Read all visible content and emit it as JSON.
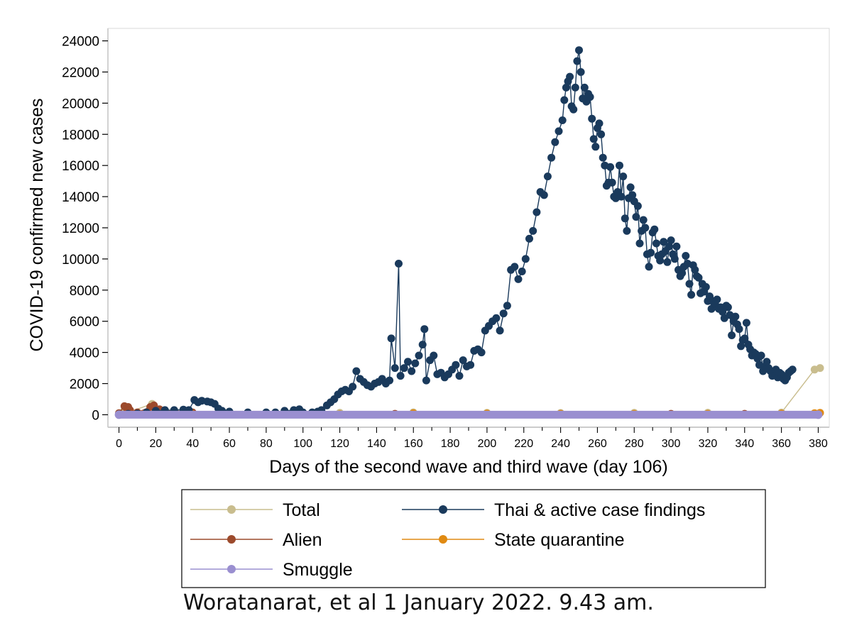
{
  "chart_data": {
    "type": "line",
    "title": "",
    "xlabel": "Days of the second wave and third wave (day 106)",
    "ylabel": "COVID-19 confirmed new cases",
    "xlim": [
      -6,
      386
    ],
    "ylim": [
      -800,
      24800
    ],
    "xticks": [
      0,
      20,
      40,
      60,
      80,
      100,
      120,
      140,
      160,
      180,
      200,
      220,
      240,
      260,
      280,
      300,
      320,
      340,
      360,
      380
    ],
    "yticks": [
      0,
      2000,
      4000,
      6000,
      8000,
      10000,
      12000,
      14000,
      16000,
      18000,
      20000,
      22000,
      24000
    ],
    "grid": false,
    "legend_position": "bottom",
    "series": [
      {
        "name": "Total",
        "color": "#c9bd8e",
        "style": "line+markers",
        "points": [
          [
            0,
            60
          ],
          [
            3,
            300
          ],
          [
            5,
            150
          ],
          [
            18,
            700
          ],
          [
            20,
            350
          ],
          [
            40,
            120
          ],
          [
            80,
            60
          ],
          [
            120,
            120
          ],
          [
            160,
            150
          ],
          [
            200,
            120
          ],
          [
            240,
            110
          ],
          [
            280,
            120
          ],
          [
            320,
            130
          ],
          [
            360,
            140
          ],
          [
            378,
            2900
          ],
          [
            381,
            3000
          ]
        ]
      },
      {
        "name": "Thai & active case findings",
        "color": "#1a3a5c",
        "style": "line+markers",
        "points": [
          [
            0,
            30
          ],
          [
            5,
            60
          ],
          [
            10,
            80
          ],
          [
            15,
            150
          ],
          [
            20,
            250
          ],
          [
            25,
            300
          ],
          [
            30,
            300
          ],
          [
            35,
            330
          ],
          [
            38,
            300
          ],
          [
            41,
            950
          ],
          [
            43,
            800
          ],
          [
            45,
            900
          ],
          [
            48,
            850
          ],
          [
            50,
            800
          ],
          [
            52,
            700
          ],
          [
            54,
            400
          ],
          [
            56,
            250
          ],
          [
            60,
            200
          ],
          [
            70,
            150
          ],
          [
            80,
            150
          ],
          [
            85,
            150
          ],
          [
            90,
            250
          ],
          [
            95,
            300
          ],
          [
            98,
            350
          ],
          [
            100,
            150
          ],
          [
            105,
            150
          ],
          [
            108,
            200
          ],
          [
            110,
            300
          ],
          [
            113,
            600
          ],
          [
            115,
            800
          ],
          [
            117,
            1000
          ],
          [
            119,
            1300
          ],
          [
            121,
            1500
          ],
          [
            123,
            1600
          ],
          [
            125,
            1500
          ],
          [
            127,
            1800
          ],
          [
            129,
            2800
          ],
          [
            131,
            2300
          ],
          [
            133,
            2100
          ],
          [
            135,
            1900
          ],
          [
            137,
            1800
          ],
          [
            139,
            2000
          ],
          [
            141,
            2100
          ],
          [
            143,
            2300
          ],
          [
            145,
            2000
          ],
          [
            147,
            2200
          ],
          [
            148,
            4900
          ],
          [
            150,
            3000
          ],
          [
            152,
            9700
          ],
          [
            153,
            2500
          ],
          [
            155,
            3000
          ],
          [
            157,
            3400
          ],
          [
            159,
            2800
          ],
          [
            161,
            3300
          ],
          [
            163,
            3800
          ],
          [
            165,
            4500
          ],
          [
            166,
            5500
          ],
          [
            167,
            2200
          ],
          [
            169,
            3500
          ],
          [
            171,
            3800
          ],
          [
            173,
            2600
          ],
          [
            175,
            2700
          ],
          [
            177,
            2400
          ],
          [
            179,
            2600
          ],
          [
            181,
            2900
          ],
          [
            183,
            3200
          ],
          [
            185,
            2500
          ],
          [
            187,
            3500
          ],
          [
            189,
            3100
          ],
          [
            191,
            3200
          ],
          [
            193,
            4100
          ],
          [
            195,
            4200
          ],
          [
            197,
            4000
          ],
          [
            199,
            5400
          ],
          [
            201,
            5700
          ],
          [
            203,
            6000
          ],
          [
            205,
            6200
          ],
          [
            207,
            5400
          ],
          [
            209,
            6500
          ],
          [
            211,
            7000
          ],
          [
            213,
            9300
          ],
          [
            215,
            9500
          ],
          [
            217,
            8700
          ],
          [
            219,
            9200
          ],
          [
            221,
            10000
          ],
          [
            223,
            11300
          ],
          [
            225,
            11800
          ],
          [
            227,
            13000
          ],
          [
            229,
            14300
          ],
          [
            231,
            14100
          ],
          [
            233,
            15300
          ],
          [
            235,
            16500
          ],
          [
            237,
            17500
          ],
          [
            239,
            18200
          ],
          [
            241,
            18900
          ],
          [
            242,
            20200
          ],
          [
            243,
            21000
          ],
          [
            244,
            21400
          ],
          [
            245,
            21700
          ],
          [
            246,
            19800
          ],
          [
            247,
            19600
          ],
          [
            248,
            21000
          ],
          [
            249,
            22700
          ],
          [
            250,
            23400
          ],
          [
            251,
            22000
          ],
          [
            252,
            20300
          ],
          [
            253,
            21000
          ],
          [
            254,
            20100
          ],
          [
            255,
            20600
          ],
          [
            256,
            20400
          ],
          [
            257,
            19000
          ],
          [
            258,
            17700
          ],
          [
            259,
            17200
          ],
          [
            260,
            18400
          ],
          [
            261,
            18700
          ],
          [
            262,
            18000
          ],
          [
            263,
            16500
          ],
          [
            264,
            16000
          ],
          [
            265,
            14700
          ],
          [
            266,
            14900
          ],
          [
            267,
            15900
          ],
          [
            268,
            14900
          ],
          [
            269,
            14000
          ],
          [
            270,
            13900
          ],
          [
            271,
            14300
          ],
          [
            272,
            16000
          ],
          [
            273,
            14000
          ],
          [
            274,
            15300
          ],
          [
            275,
            12600
          ],
          [
            276,
            11800
          ],
          [
            277,
            13900
          ],
          [
            278,
            14600
          ],
          [
            279,
            14100
          ],
          [
            280,
            13700
          ],
          [
            281,
            12700
          ],
          [
            282,
            13400
          ],
          [
            283,
            11000
          ],
          [
            284,
            11800
          ],
          [
            285,
            12500
          ],
          [
            286,
            12000
          ],
          [
            287,
            10300
          ],
          [
            288,
            9500
          ],
          [
            289,
            10400
          ],
          [
            290,
            11700
          ],
          [
            291,
            11900
          ],
          [
            292,
            11000
          ],
          [
            293,
            10200
          ],
          [
            294,
            9900
          ],
          [
            295,
            10300
          ],
          [
            296,
            11100
          ],
          [
            297,
            10500
          ],
          [
            298,
            9800
          ],
          [
            299,
            10800
          ],
          [
            300,
            11200
          ],
          [
            301,
            10300
          ],
          [
            302,
            10000
          ],
          [
            303,
            10800
          ],
          [
            304,
            9300
          ],
          [
            305,
            8900
          ],
          [
            306,
            9100
          ],
          [
            307,
            9500
          ],
          [
            308,
            10200
          ],
          [
            309,
            9700
          ],
          [
            310,
            8400
          ],
          [
            311,
            7700
          ],
          [
            312,
            9600
          ],
          [
            313,
            9300
          ],
          [
            314,
            8900
          ],
          [
            315,
            8800
          ],
          [
            316,
            7800
          ],
          [
            317,
            8400
          ],
          [
            318,
            7900
          ],
          [
            319,
            8200
          ],
          [
            320,
            7300
          ],
          [
            321,
            7600
          ],
          [
            322,
            6800
          ],
          [
            323,
            7300
          ],
          [
            324,
            7100
          ],
          [
            325,
            7400
          ],
          [
            326,
            6800
          ],
          [
            327,
            6900
          ],
          [
            328,
            6600
          ],
          [
            329,
            6200
          ],
          [
            330,
            7000
          ],
          [
            331,
            6900
          ],
          [
            332,
            6400
          ],
          [
            333,
            5100
          ],
          [
            334,
            6000
          ],
          [
            335,
            6300
          ],
          [
            336,
            5800
          ],
          [
            337,
            5500
          ],
          [
            338,
            4400
          ],
          [
            339,
            4800
          ],
          [
            340,
            4900
          ],
          [
            341,
            5900
          ],
          [
            342,
            4500
          ],
          [
            343,
            4200
          ],
          [
            344,
            3800
          ],
          [
            345,
            4000
          ],
          [
            346,
            3900
          ],
          [
            347,
            3600
          ],
          [
            348,
            3200
          ],
          [
            349,
            3800
          ],
          [
            350,
            2800
          ],
          [
            351,
            3100
          ],
          [
            352,
            3400
          ],
          [
            353,
            3000
          ],
          [
            354,
            2800
          ],
          [
            355,
            2500
          ],
          [
            356,
            2700
          ],
          [
            357,
            2900
          ],
          [
            358,
            2400
          ],
          [
            359,
            2700
          ],
          [
            360,
            2600
          ],
          [
            361,
            2300
          ],
          [
            362,
            2200
          ],
          [
            363,
            2400
          ],
          [
            364,
            2700
          ],
          [
            365,
            2800
          ],
          [
            366,
            2900
          ]
        ]
      },
      {
        "name": "Alien",
        "color": "#9c4a2c",
        "style": "line+markers",
        "points": [
          [
            0,
            100
          ],
          [
            3,
            550
          ],
          [
            4,
            450
          ],
          [
            5,
            500
          ],
          [
            6,
            300
          ],
          [
            10,
            150
          ],
          [
            17,
            500
          ],
          [
            19,
            600
          ],
          [
            22,
            350
          ],
          [
            40,
            150
          ],
          [
            80,
            80
          ],
          [
            150,
            60
          ],
          [
            200,
            60
          ],
          [
            240,
            60
          ],
          [
            300,
            60
          ],
          [
            340,
            60
          ],
          [
            380,
            60
          ]
        ]
      },
      {
        "name": "State quarantine",
        "color": "#e08a12",
        "style": "line+markers",
        "points": [
          [
            0,
            30
          ],
          [
            40,
            30
          ],
          [
            80,
            30
          ],
          [
            120,
            30
          ],
          [
            160,
            100
          ],
          [
            200,
            80
          ],
          [
            240,
            60
          ],
          [
            280,
            60
          ],
          [
            320,
            60
          ],
          [
            360,
            80
          ],
          [
            378,
            100
          ],
          [
            381,
            120
          ]
        ]
      },
      {
        "name": "Smuggle",
        "color": "#9a8fd0",
        "style": "line+markers",
        "points": [
          [
            0,
            0
          ],
          [
            380,
            0
          ]
        ]
      }
    ]
  },
  "credit": "Woratanarat, et al 1 January 2022. 9.43 am."
}
